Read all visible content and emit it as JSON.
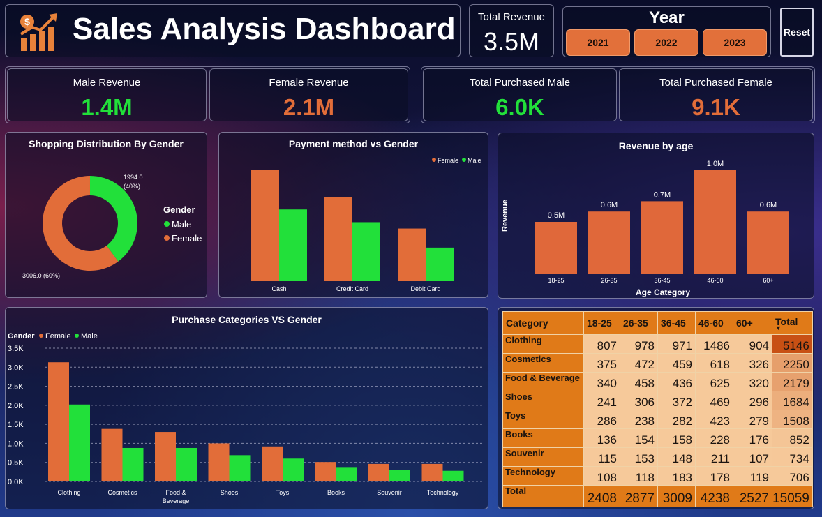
{
  "header": {
    "title": "Sales Analysis Dashboard"
  },
  "total_revenue": {
    "label": "Total Revenue",
    "value": "3.5M"
  },
  "year_filter": {
    "title": "Year",
    "options": [
      "2021",
      "2022",
      "2023"
    ]
  },
  "reset_label": "Reset",
  "kpis": {
    "male_revenue": {
      "label": "Male Revenue",
      "value": "1.4M",
      "color": "#22e03a"
    },
    "female_revenue": {
      "label": "Female Revenue",
      "value": "2.1M",
      "color": "#e26d39"
    },
    "purchased_male": {
      "label": "Total Purchased Male",
      "value": "6.0K",
      "color": "#22e03a"
    },
    "purchased_female": {
      "label": "Total Purchased Female",
      "value": "9.1K",
      "color": "#e26d39"
    }
  },
  "colors": {
    "female": "#e26d39",
    "male": "#22e03a",
    "matrix_header": "#e07a18",
    "matrix_cell": "#f6c99a"
  },
  "donut": {
    "title": "Shopping Distribution By Gender",
    "legend_title": "Gender",
    "legend": [
      "Male",
      "Female"
    ],
    "male_label_value": "1994.0",
    "male_label_pct": "(40%)",
    "female_label": "3006.0 (60%)"
  },
  "payment": {
    "title": "Payment method vs Gender",
    "legend": [
      "Female",
      "Male"
    ]
  },
  "age": {
    "title": "Revenue by age",
    "ylabel": "Revenue",
    "xlabel": "Age Category"
  },
  "categories": {
    "title": "Purchase Categories VS Gender",
    "legend_title": "Gender",
    "legend": [
      "Female",
      "Male"
    ]
  },
  "chart_data": [
    {
      "type": "pie",
      "title": "Shopping Distribution By Gender",
      "categories": [
        "Male",
        "Female"
      ],
      "values": [
        1994,
        3006
      ]
    },
    {
      "type": "bar",
      "title": "Payment method vs Gender",
      "categories": [
        "Cash",
        "Credit Card",
        "Debit Card"
      ],
      "series": [
        {
          "name": "Female",
          "values": [
            1230,
            930,
            580
          ]
        },
        {
          "name": "Male",
          "values": [
            790,
            650,
            370
          ]
        }
      ]
    },
    {
      "type": "bar",
      "title": "Revenue by age",
      "xlabel": "Age Category",
      "ylabel": "Revenue",
      "categories": [
        "18-25",
        "26-35",
        "36-45",
        "46-60",
        "60+"
      ],
      "values": [
        0.5,
        0.6,
        0.7,
        1.0,
        0.6
      ],
      "data_labels": [
        "0.5M",
        "0.6M",
        "0.7M",
        "1.0M",
        "0.6M"
      ]
    },
    {
      "type": "bar",
      "title": "Purchase Categories VS Gender",
      "categories": [
        "Clothing",
        "Cosmetics",
        "Food & Beverage",
        "Shoes",
        "Toys",
        "Books",
        "Souvenir",
        "Technology"
      ],
      "ylim": [
        0,
        3500
      ],
      "yticks": [
        "0.0K",
        "0.5K",
        "1.0K",
        "1.5K",
        "2.0K",
        "2.5K",
        "3.0K",
        "3.5K"
      ],
      "grid": true,
      "series": [
        {
          "name": "Female",
          "values": [
            3130,
            1380,
            1300,
            1000,
            920,
            510,
            460,
            460
          ]
        },
        {
          "name": "Male",
          "values": [
            2020,
            880,
            880,
            690,
            600,
            360,
            310,
            280
          ]
        }
      ]
    },
    {
      "type": "table",
      "columns": [
        "Category",
        "18-25",
        "26-35",
        "36-45",
        "46-60",
        "60+",
        "Total"
      ],
      "rows": [
        [
          "Clothing",
          "807",
          "978",
          "971",
          "1486",
          "904",
          "5146"
        ],
        [
          "Cosmetics",
          "375",
          "472",
          "459",
          "618",
          "326",
          "2250"
        ],
        [
          "Food & Beverage",
          "340",
          "458",
          "436",
          "625",
          "320",
          "2179"
        ],
        [
          "Shoes",
          "241",
          "306",
          "372",
          "469",
          "296",
          "1684"
        ],
        [
          "Toys",
          "286",
          "238",
          "282",
          "423",
          "279",
          "1508"
        ],
        [
          "Books",
          "136",
          "154",
          "158",
          "228",
          "176",
          "852"
        ],
        [
          "Souvenir",
          "115",
          "153",
          "148",
          "211",
          "107",
          "734"
        ],
        [
          "Technology",
          "108",
          "118",
          "183",
          "178",
          "119",
          "706"
        ]
      ],
      "total_row": [
        "Total",
        "2408",
        "2877",
        "3009",
        "4238",
        "2527",
        "15059"
      ],
      "total_col_values": [
        5146,
        2250,
        2179,
        1684,
        1508,
        852,
        734,
        706
      ]
    }
  ]
}
